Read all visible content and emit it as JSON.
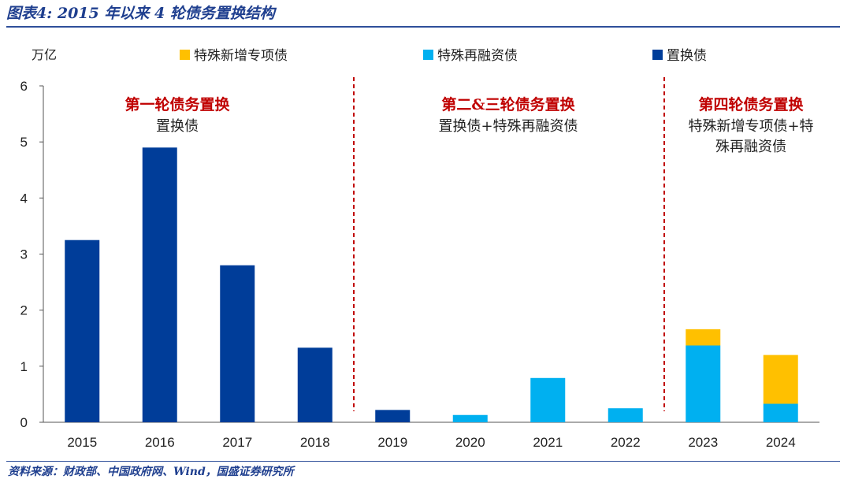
{
  "figure": {
    "title": "图表4:  2015 年以来 4 轮债务置换结构",
    "source": "资料来源：财政部、中国政府网、Wind，国盛证券研究所"
  },
  "chart_data": {
    "type": "bar",
    "stacked": true,
    "unit_label": "万亿",
    "categories": [
      "2015",
      "2016",
      "2017",
      "2018",
      "2019",
      "2020",
      "2021",
      "2022",
      "2023",
      "2024"
    ],
    "series": [
      {
        "name": "置换债",
        "color": "#003d99",
        "values": [
          3.25,
          4.9,
          2.8,
          1.33,
          0.22,
          0,
          0,
          0,
          0,
          0
        ]
      },
      {
        "name": "特殊再融资债",
        "color": "#00b0f0",
        "values": [
          0,
          0,
          0,
          0,
          0,
          0.13,
          0.79,
          0.25,
          1.37,
          0.33
        ]
      },
      {
        "name": "特殊新增专项债",
        "color": "#ffc000",
        "values": [
          0,
          0,
          0,
          0,
          0,
          0,
          0,
          0,
          0.29,
          0.87
        ]
      }
    ],
    "legend_order": [
      "特殊新增专项债",
      "特殊再融资债",
      "置换债"
    ],
    "legend_position": "top",
    "ylim": [
      0,
      6
    ],
    "yticks": [
      0,
      1,
      2,
      3,
      4,
      5,
      6
    ],
    "grid": false,
    "separators_after_category": [
      "2018",
      "2022"
    ],
    "annotations": [
      {
        "label": "第一轮债务置换",
        "sub": [
          "置换债"
        ]
      },
      {
        "label": "第二&三轮债务置换",
        "sub": [
          "置换债+特殊再融资债"
        ]
      },
      {
        "label": "第四轮债务置换",
        "sub": [
          "特殊新增专项债+特",
          "殊再融资债"
        ]
      }
    ]
  }
}
